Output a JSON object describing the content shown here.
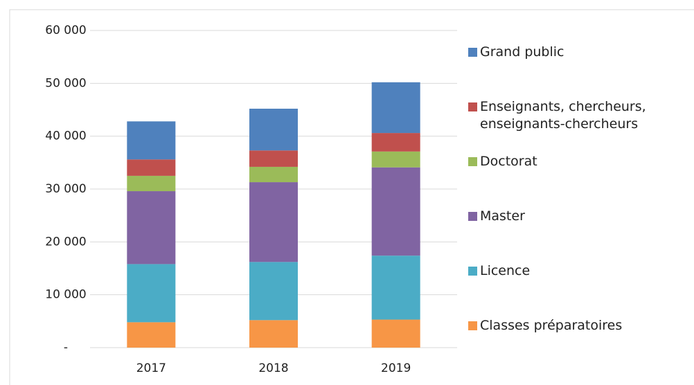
{
  "chart_data": {
    "type": "stacked_bar",
    "categories": [
      "2017",
      "2018",
      "2019"
    ],
    "series": [
      {
        "name": "Classes préparatoires",
        "color": "#f79646",
        "values": [
          4800,
          5200,
          5300
        ]
      },
      {
        "name": "Licence",
        "color": "#4bacc6",
        "values": [
          11000,
          11000,
          12100
        ]
      },
      {
        "name": "Master",
        "color": "#8064a2",
        "values": [
          13800,
          15100,
          16700
        ]
      },
      {
        "name": "Doctorat",
        "color": "#9bbb59",
        "values": [
          2900,
          2900,
          3000
        ]
      },
      {
        "name": "Enseignants, chercheurs, enseignants-chercheurs",
        "color": "#c0504d",
        "values": [
          3100,
          3100,
          3500
        ]
      },
      {
        "name": "Grand public",
        "color": "#4f81bd",
        "values": [
          7200,
          7900,
          9600
        ]
      }
    ],
    "ylim": [
      0,
      60000
    ],
    "yticks": [
      {
        "value": 0,
        "label": "-"
      },
      {
        "value": 10000,
        "label": "10 000"
      },
      {
        "value": 20000,
        "label": "20 000"
      },
      {
        "value": 30000,
        "label": "30 000"
      },
      {
        "value": 40000,
        "label": "40 000"
      },
      {
        "value": 50000,
        "label": "50 000"
      },
      {
        "value": 60000,
        "label": "60 000"
      }
    ],
    "grid": true,
    "legend": "right"
  }
}
